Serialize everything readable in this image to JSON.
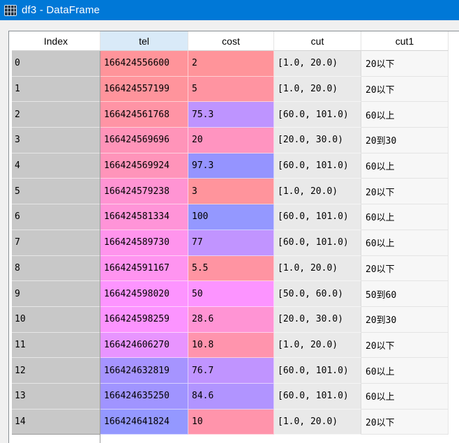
{
  "window": {
    "title": "df3 - DataFrame",
    "icon": "table-grid-icon"
  },
  "theme": {
    "titlebar_blue": "#0078d7",
    "title_text_color": "#ffffff",
    "header_highlight_bg": "#d9eaf8",
    "index_cell_bg": "#c8c8c8",
    "cut_cell_bg": "#e9e9e9",
    "cut1_cell_bg": "#f7f7f7",
    "frame_border": "#898f94"
  },
  "table": {
    "columns": [
      "Index",
      "tel",
      "cost",
      "cut",
      "cut1"
    ],
    "highlighted_column": "tel",
    "rows": [
      {
        "index": "0",
        "tel": "166424556600",
        "cost": "2",
        "cut": "[1.0, 20.0)",
        "cut1": "20以下",
        "tel_color": "#FF949A",
        "cost_color": "#FF949A"
      },
      {
        "index": "1",
        "tel": "166424557199",
        "cost": "5",
        "cut": "[1.0, 20.0)",
        "cut1": "20以下",
        "tel_color": "#FF949C",
        "cost_color": "#FF94A1"
      },
      {
        "index": "2",
        "tel": "166424561768",
        "cost": "75.3",
        "cut": "[60.0, 101.0)",
        "cut1": "60以上",
        "tel_color": "#FF94A5",
        "cost_color": "#BE94FF"
      },
      {
        "index": "3",
        "tel": "166424569696",
        "cost": "20",
        "cut": "[20.0, 30.0)",
        "cut1": "20到30",
        "tel_color": "#FF94B9",
        "cost_color": "#FF94C0"
      },
      {
        "index": "4",
        "tel": "166424569924",
        "cost": "97.3",
        "cut": "[60.0, 101.0)",
        "cut1": "60以上",
        "tel_color": "#FF94BA",
        "cost_color": "#9594FF"
      },
      {
        "index": "5",
        "tel": "166424579238",
        "cost": "3",
        "cut": "[1.0, 20.0)",
        "cut1": "20以下",
        "tel_color": "#FF94D3",
        "cost_color": "#FF949C"
      },
      {
        "index": "6",
        "tel": "166424581334",
        "cost": "100",
        "cut": "[60.0, 101.0)",
        "cut1": "60以上",
        "tel_color": "#FF94D8",
        "cost_color": "#9498FF"
      },
      {
        "index": "7",
        "tel": "166424589730",
        "cost": "77",
        "cut": "[60.0, 101.0)",
        "cut1": "60以上",
        "tel_color": "#FF94ED",
        "cost_color": "#C194FF"
      },
      {
        "index": "8",
        "tel": "166424591167",
        "cost": "5.5",
        "cut": "[1.0, 20.0)",
        "cut1": "20以下",
        "tel_color": "#FF94F0",
        "cost_color": "#FF94A2"
      },
      {
        "index": "9",
        "tel": "166424598020",
        "cost": "50",
        "cut": "[50.0, 60.0)",
        "cut1": "50到60",
        "tel_color": "#FD94FF",
        "cost_color": "#FC94FF"
      },
      {
        "index": "10",
        "tel": "166424598259",
        "cost": "28.6",
        "cut": "[20.0, 30.0)",
        "cut1": "20到30",
        "tel_color": "#FC94FF",
        "cost_color": "#FF94D4"
      },
      {
        "index": "11",
        "tel": "166424606270",
        "cost": "10.8",
        "cut": "[1.0, 20.0)",
        "cut1": "20以下",
        "tel_color": "#E894FF",
        "cost_color": "#FF94AD"
      },
      {
        "index": "12",
        "tel": "166424632819",
        "cost": "76.7",
        "cut": "[60.0, 101.0)",
        "cut1": "60以上",
        "tel_color": "#A694FF",
        "cost_color": "#C094FF"
      },
      {
        "index": "13",
        "tel": "166424635250",
        "cost": "84.6",
        "cut": "[60.0, 101.0)",
        "cut1": "60以上",
        "tel_color": "#A094FF",
        "cost_color": "#B194FF"
      },
      {
        "index": "14",
        "tel": "166424641824",
        "cost": "10",
        "cut": "[1.0, 20.0)",
        "cut1": "20以下",
        "tel_color": "#9498FF",
        "cost_color": "#FF94AB"
      }
    ]
  }
}
